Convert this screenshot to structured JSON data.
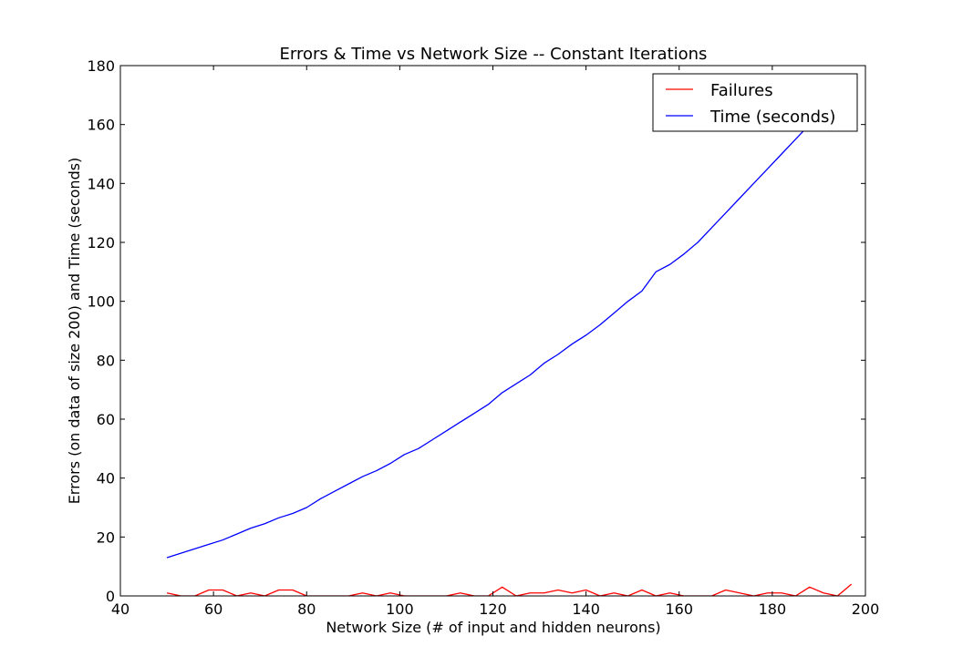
{
  "chart_data": {
    "type": "line",
    "title": "Errors & Time vs Network Size -- Constant Iterations",
    "xlabel": "Network Size (# of input and hidden neurons)",
    "ylabel": "Errors (on data of size 200) and Time (seconds)",
    "xlim": [
      40,
      200
    ],
    "ylim": [
      0,
      180
    ],
    "xticks": [
      40,
      60,
      80,
      100,
      120,
      140,
      160,
      180,
      200
    ],
    "yticks": [
      0,
      20,
      40,
      60,
      80,
      100,
      120,
      140,
      160,
      180
    ],
    "grid": false,
    "legend_position": "top-right",
    "series": [
      {
        "name": "Failures",
        "color": "#ff0000",
        "x": [
          50,
          53,
          56,
          59,
          62,
          65,
          68,
          71,
          74,
          77,
          80,
          83,
          86,
          89,
          92,
          95,
          98,
          101,
          104,
          107,
          110,
          113,
          116,
          119,
          122,
          125,
          128,
          131,
          134,
          137,
          140,
          143,
          146,
          149,
          152,
          155,
          158,
          161,
          164,
          167,
          170,
          173,
          176,
          179,
          182,
          185,
          188,
          191,
          194,
          197
        ],
        "y": [
          1,
          0,
          0,
          2,
          2,
          0,
          1,
          0,
          2,
          2,
          0,
          0,
          0,
          0,
          1,
          0,
          1,
          0,
          0,
          0,
          0,
          1,
          0,
          0,
          3,
          0,
          1,
          1,
          2,
          1,
          2,
          0,
          1,
          0,
          2,
          0,
          1,
          0,
          0,
          0,
          2,
          1,
          0,
          1,
          1,
          0,
          3,
          1,
          0,
          4
        ]
      },
      {
        "name": "Time (seconds)",
        "color": "#0000ff",
        "x": [
          50,
          53,
          56,
          59,
          62,
          65,
          68,
          71,
          74,
          77,
          80,
          83,
          86,
          89,
          92,
          95,
          98,
          101,
          104,
          107,
          110,
          113,
          116,
          119,
          122,
          125,
          128,
          131,
          134,
          137,
          140,
          143,
          146,
          149,
          152,
          155,
          158,
          161,
          164,
          167,
          170,
          173,
          176,
          179,
          182,
          185,
          188
        ],
        "y": [
          13,
          14.5,
          16,
          17.5,
          19,
          21,
          23,
          24.5,
          26.5,
          28,
          30,
          33,
          35.5,
          38,
          40.5,
          42.5,
          45,
          48,
          50,
          53,
          56,
          59,
          62,
          65,
          69,
          72,
          75,
          79,
          82,
          85.5,
          88.5,
          92,
          96,
          100,
          103.5,
          110,
          112.5,
          116,
          120,
          125,
          130,
          135,
          140,
          145,
          150,
          155,
          160
        ]
      }
    ]
  }
}
